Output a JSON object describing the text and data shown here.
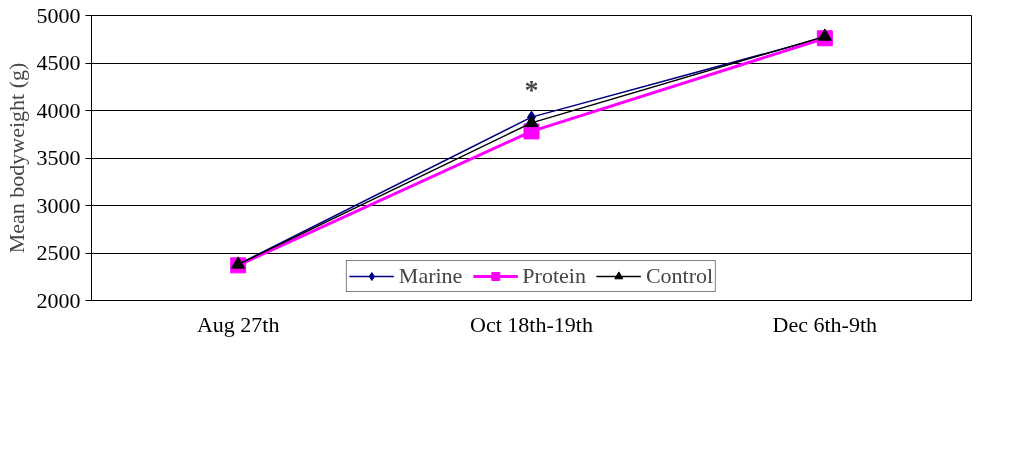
{
  "chart_data": {
    "type": "line",
    "categories": [
      "Aug 27th",
      "Oct 18th-19th",
      "Dec 6th-9th"
    ],
    "ylabel": "Mean bodyweight (g)",
    "ylim": [
      2000,
      5000
    ],
    "yticks": [
      2000,
      2500,
      3000,
      3500,
      4000,
      4500,
      5000
    ],
    "grid": "y",
    "legend": "bottom",
    "series": [
      {
        "name": "Marine",
        "color": "#000080",
        "marker": "diamond",
        "values": [
          2380,
          3930,
          4770
        ]
      },
      {
        "name": "Protein",
        "color": "#ff00ff",
        "marker": "square",
        "values": [
          2370,
          3780,
          4760
        ]
      },
      {
        "name": "Control",
        "color": "#000000",
        "marker": "triangle",
        "values": [
          2380,
          3870,
          4780
        ]
      }
    ],
    "annotations": [
      "*"
    ]
  }
}
